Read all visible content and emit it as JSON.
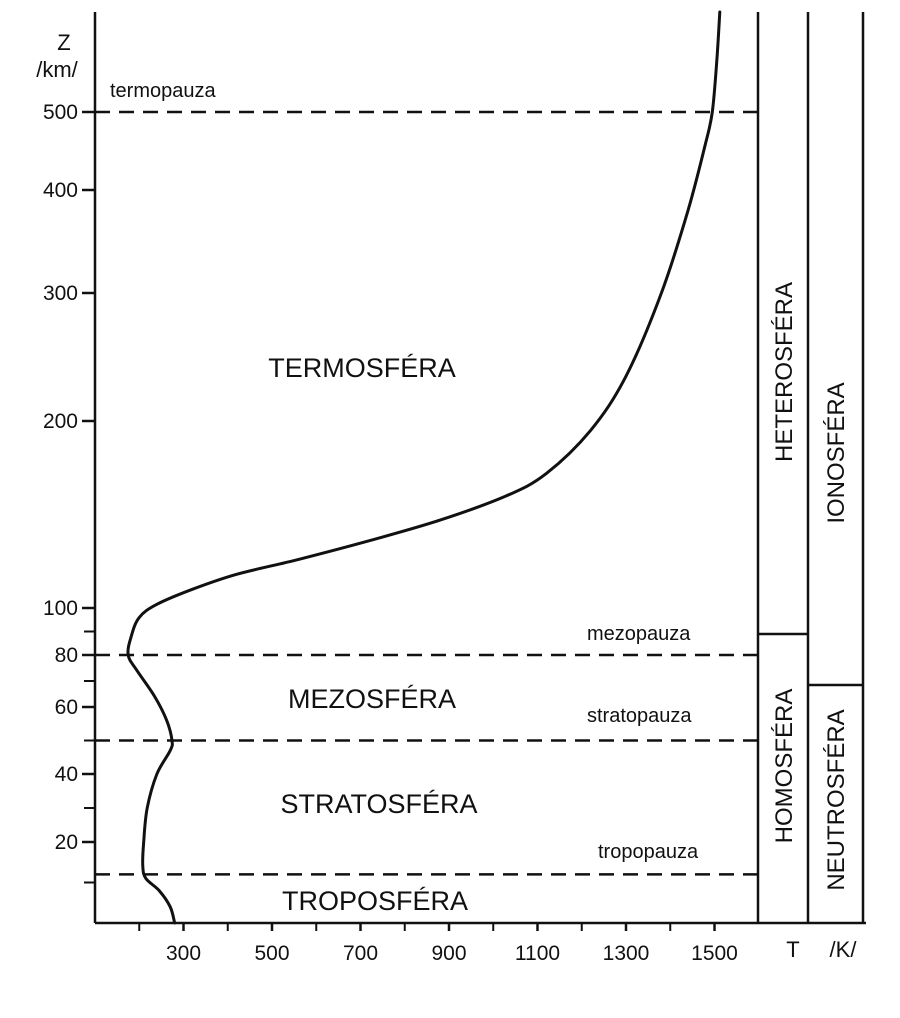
{
  "chart_data": {
    "type": "line",
    "title": "",
    "xlabel": "T",
    "xunit": "/K/",
    "ylabel": "Z",
    "yunit": "/km/",
    "x_ticks": [
      300,
      500,
      700,
      900,
      1100,
      1300,
      1500
    ],
    "y_ticks": [
      20,
      40,
      60,
      80,
      100,
      200,
      300,
      400,
      500
    ],
    "series": [
      {
        "name": "",
        "points": [
          [
            280,
            0
          ],
          [
            270,
            4
          ],
          [
            245,
            8
          ],
          [
            215,
            11
          ],
          [
            208,
            14
          ],
          [
            210,
            20
          ],
          [
            218,
            30
          ],
          [
            240,
            40
          ],
          [
            270,
            47
          ],
          [
            274,
            50
          ],
          [
            262,
            56
          ],
          [
            235,
            64
          ],
          [
            195,
            74
          ],
          [
            175,
            80
          ],
          [
            182,
            88
          ],
          [
            200,
            96
          ],
          [
            240,
            102
          ],
          [
            320,
            110
          ],
          [
            420,
            118
          ],
          [
            560,
            126
          ],
          [
            720,
            136
          ],
          [
            880,
            147
          ],
          [
            1030,
            160
          ],
          [
            1120,
            172
          ],
          [
            1220,
            195
          ],
          [
            1300,
            235
          ],
          [
            1380,
            300
          ],
          [
            1440,
            380
          ],
          [
            1480,
            460
          ],
          [
            1495,
            500
          ],
          [
            1505,
            560
          ],
          [
            1512,
            620
          ]
        ]
      }
    ],
    "boundaries": [
      {
        "name": "termopauza",
        "z": 500
      },
      {
        "name": "mezopauza",
        "z": 80
      },
      {
        "name": "stratopauza",
        "z": 50
      },
      {
        "name": "tropopauza",
        "z": 12
      }
    ],
    "layers": [
      {
        "name": "TERMOSFÉRA"
      },
      {
        "name": "MEZOSFÉRA"
      },
      {
        "name": "STRATOSFÉRA"
      },
      {
        "name": "TROPOSFÉRA"
      }
    ],
    "side_columns": [
      {
        "upper": "HETEROSFÉRA",
        "lower": "HOMOSFÉRA"
      },
      {
        "upper": "IONOSFÉRA",
        "lower": "NEUTROSFÉRA"
      }
    ]
  }
}
